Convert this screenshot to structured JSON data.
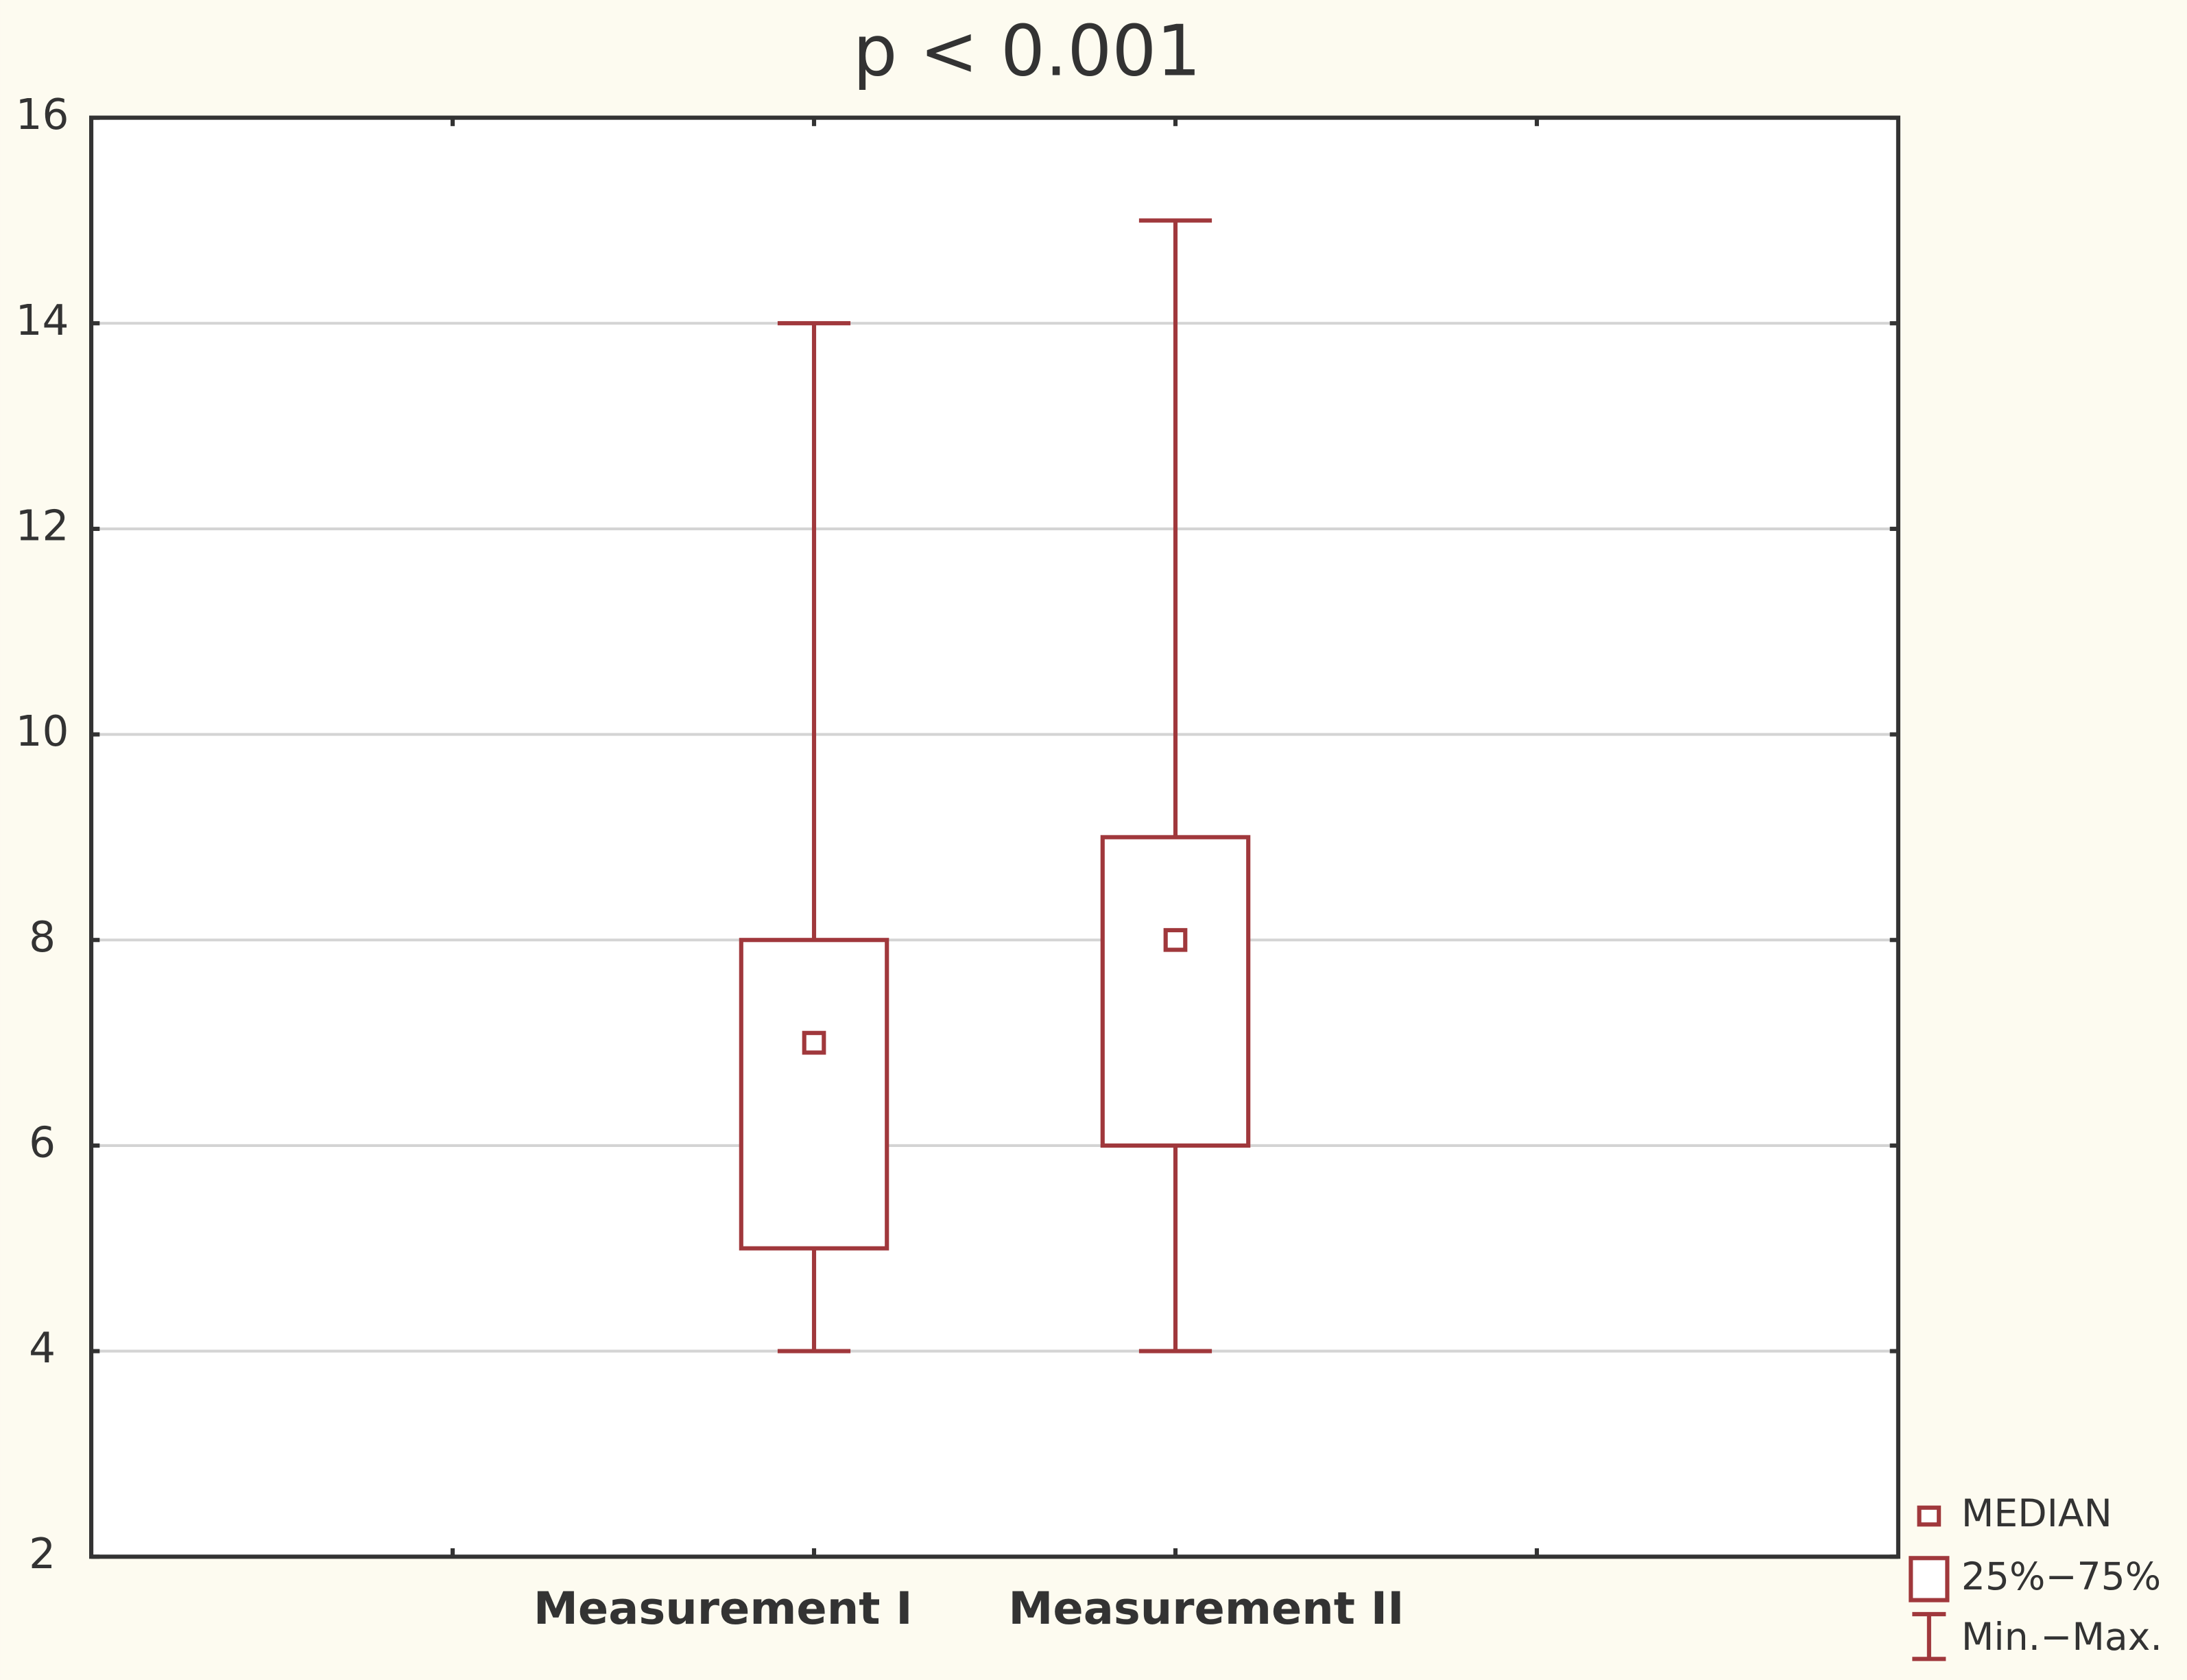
{
  "chart_data": {
    "type": "box",
    "title": "p < 0.001",
    "categories": [
      "Measurement I",
      "Measurement II"
    ],
    "boxes": [
      {
        "min": 4,
        "q1": 5,
        "median": 7,
        "q3": 8,
        "max": 14
      },
      {
        "min": 4,
        "q1": 6,
        "median": 8,
        "q3": 9,
        "max": 15
      }
    ],
    "color": "#a0383c",
    "ylim": [
      2,
      16
    ],
    "yticks": [
      2,
      4,
      6,
      8,
      10,
      12,
      14,
      16
    ],
    "grid": true,
    "legend": [
      "MEDIAN",
      "25%−75%",
      "Min.−Max."
    ],
    "legend_position": "lower right"
  }
}
